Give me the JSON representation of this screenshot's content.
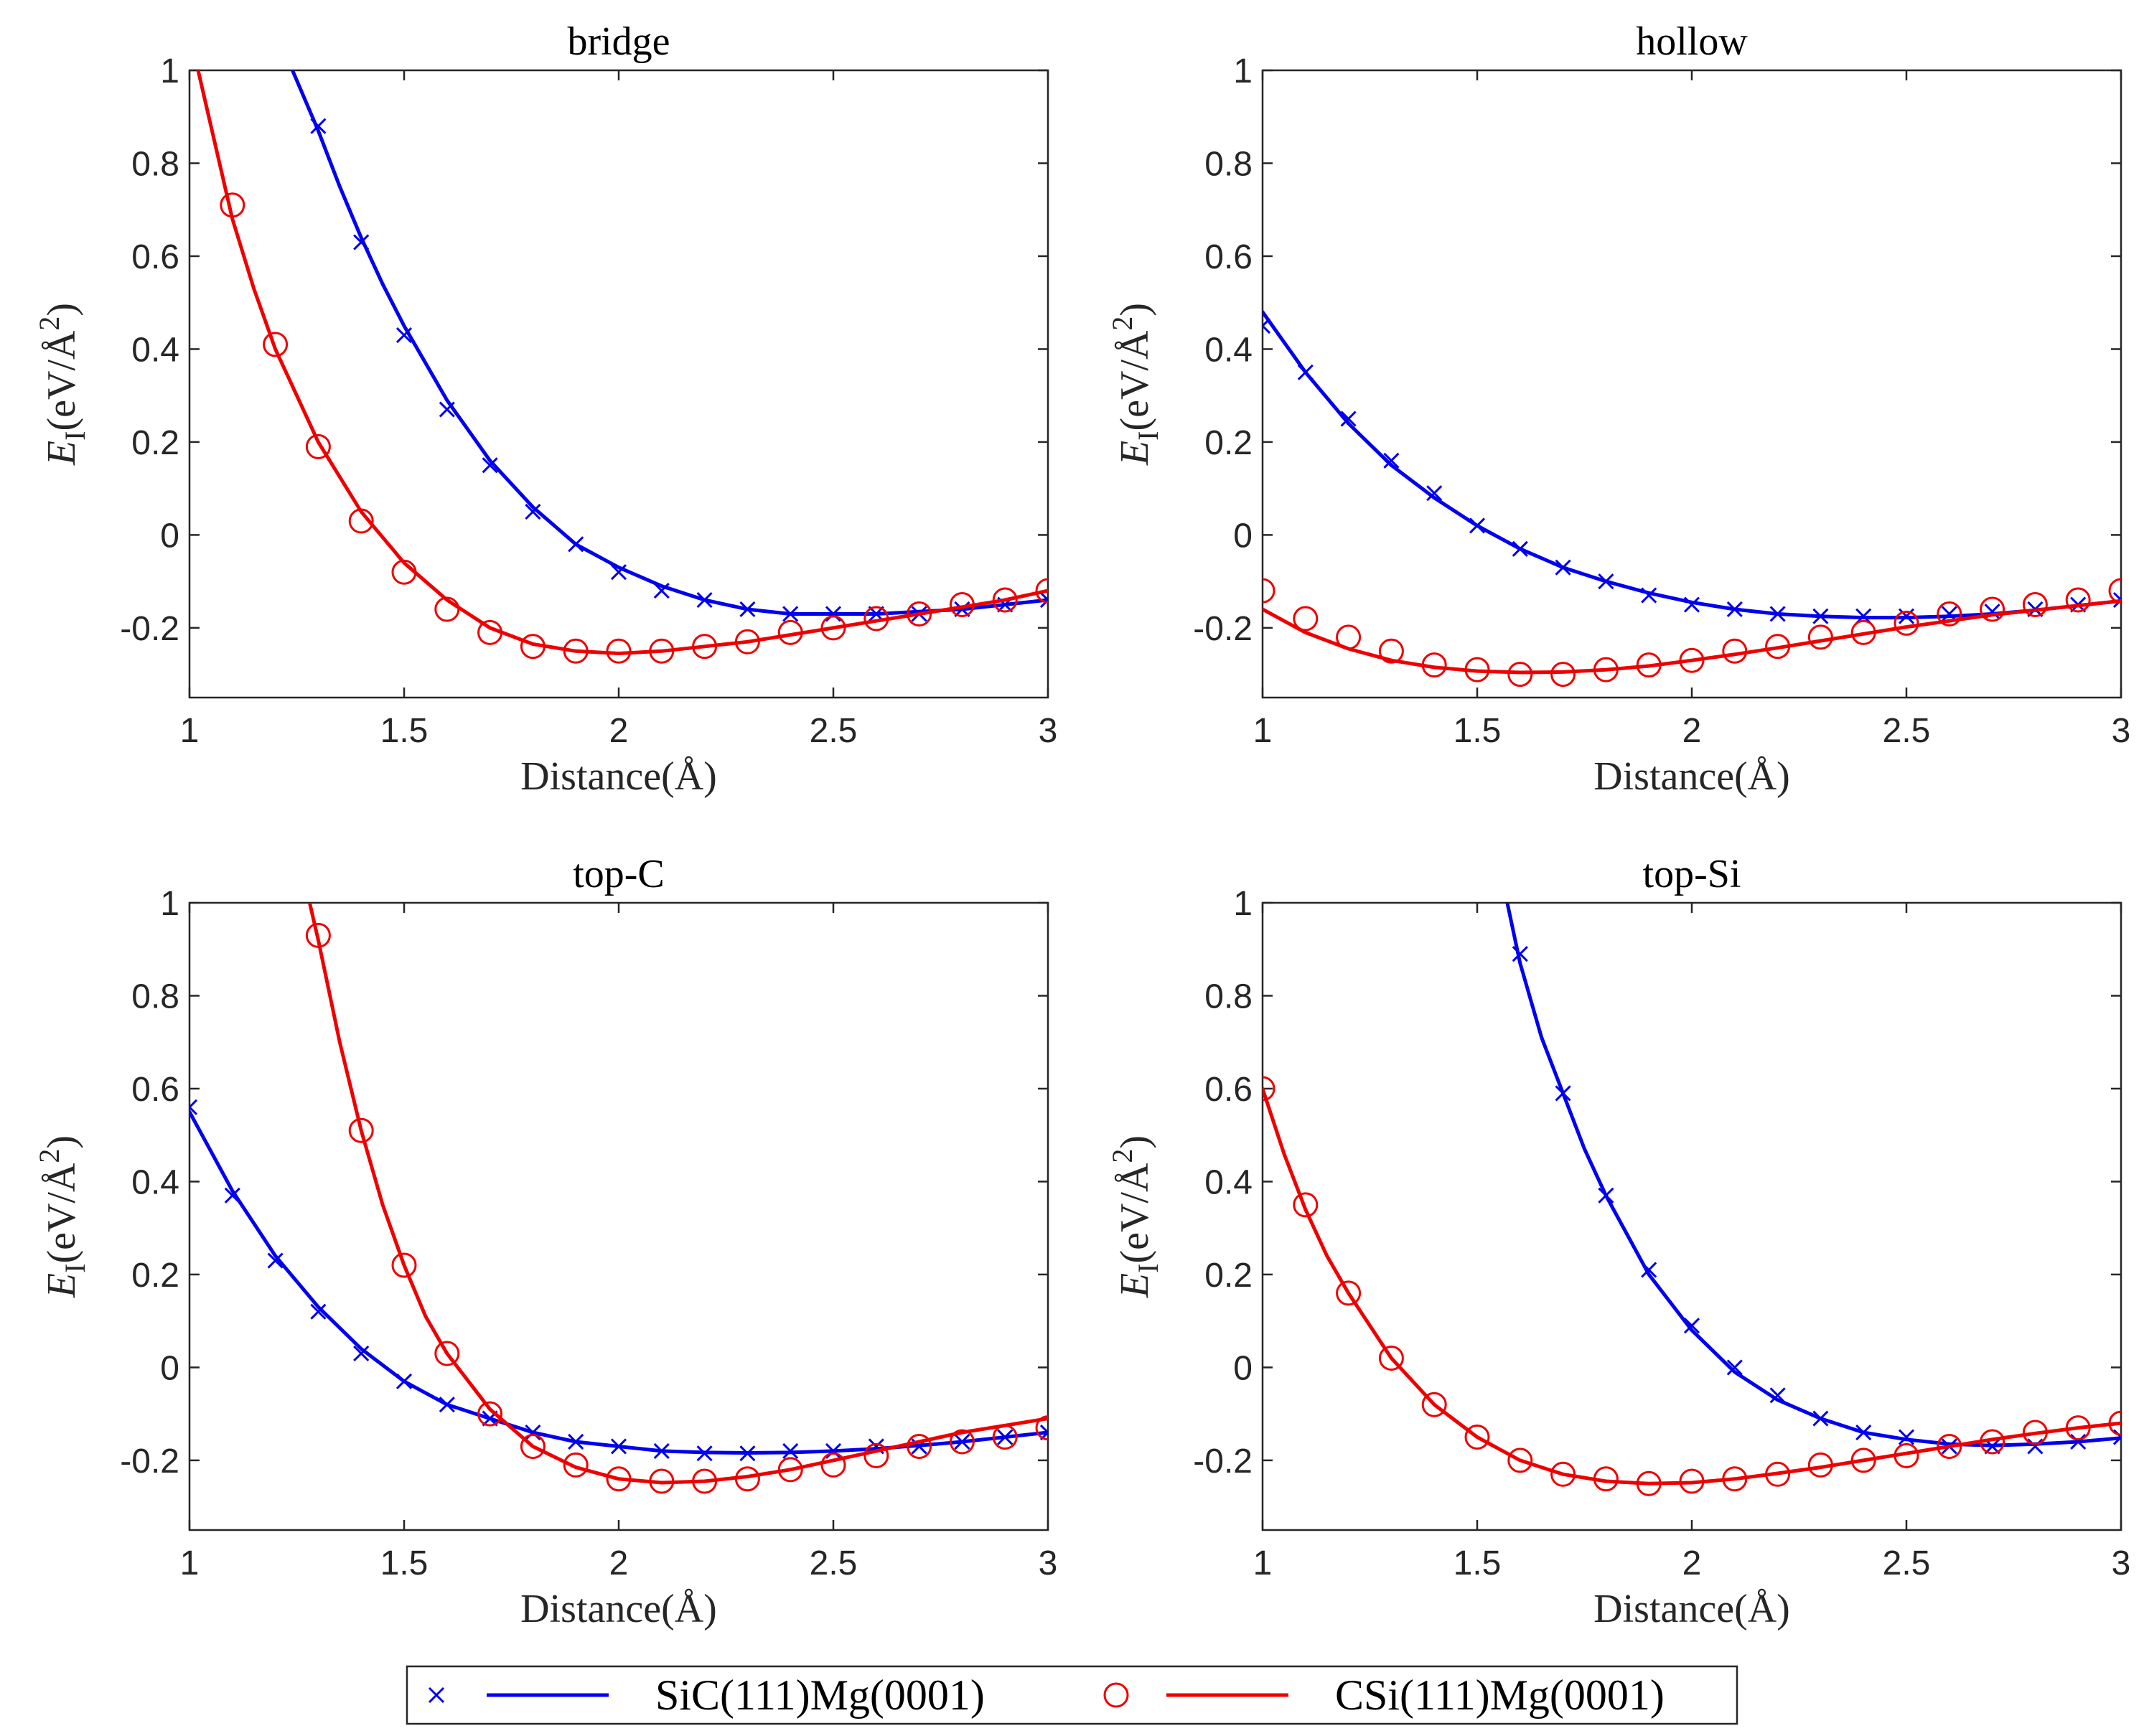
{
  "chart_data": [
    {
      "type": "line",
      "title": "bridge",
      "xlabel": "Distance(Å)",
      "ylabel": {
        "symbol": "E",
        "subscript": "I",
        "unit_open": "(eV/Å",
        "unit_power": "2",
        "unit_close": ")"
      },
      "xlim": [
        1,
        3
      ],
      "ylim": [
        -0.35,
        1
      ],
      "xticks": [
        1,
        1.5,
        2,
        2.5,
        3
      ],
      "yticks": [
        -0.2,
        0,
        0.2,
        0.4,
        0.6,
        0.8,
        1
      ],
      "series": [
        {
          "name": "SiC(111)Mg(0001)",
          "color": "#0000ee",
          "marker": "x",
          "points": {
            "x": [
              1.3,
              1.4,
              1.5,
              1.6,
              1.7,
              1.8,
              1.9,
              2.0,
              2.1,
              2.2,
              2.3,
              2.4,
              2.5,
              2.6,
              2.7,
              2.8,
              2.9,
              3.0
            ],
            "y": [
              0.88,
              0.63,
              0.43,
              0.27,
              0.15,
              0.05,
              -0.02,
              -0.08,
              -0.12,
              -0.14,
              -0.16,
              -0.17,
              -0.17,
              -0.17,
              -0.17,
              -0.16,
              -0.15,
              -0.14
            ]
          },
          "fit": {
            "x": [
              1.24,
              1.3,
              1.35,
              1.4,
              1.45,
              1.5,
              1.6,
              1.7,
              1.8,
              1.9,
              2.0,
              2.1,
              2.2,
              2.3,
              2.4,
              2.5,
              2.6,
              2.7,
              2.8,
              2.9,
              3.0
            ],
            "y": [
              1.0,
              0.87,
              0.75,
              0.64,
              0.54,
              0.45,
              0.29,
              0.16,
              0.06,
              -0.02,
              -0.07,
              -0.11,
              -0.14,
              -0.16,
              -0.17,
              -0.17,
              -0.17,
              -0.165,
              -0.16,
              -0.15,
              -0.14
            ]
          }
        },
        {
          "name": "CSi(111)Mg(0001)",
          "color": "#ee0000",
          "marker": "o",
          "points": {
            "x": [
              1.1,
              1.2,
              1.3,
              1.4,
              1.5,
              1.6,
              1.7,
              1.8,
              1.9,
              2.0,
              2.1,
              2.2,
              2.3,
              2.4,
              2.5,
              2.6,
              2.7,
              2.8,
              2.9,
              3.0
            ],
            "y": [
              0.71,
              0.41,
              0.19,
              0.03,
              -0.08,
              -0.16,
              -0.21,
              -0.24,
              -0.25,
              -0.25,
              -0.25,
              -0.24,
              -0.23,
              -0.21,
              -0.2,
              -0.18,
              -0.17,
              -0.15,
              -0.14,
              -0.12
            ]
          },
          "fit": {
            "x": [
              1.02,
              1.05,
              1.1,
              1.15,
              1.2,
              1.3,
              1.4,
              1.5,
              1.6,
              1.7,
              1.8,
              1.9,
              2.0,
              2.1,
              2.2,
              2.3,
              2.4,
              2.5,
              2.6,
              2.7,
              2.8,
              2.9,
              3.0
            ],
            "y": [
              1.0,
              0.88,
              0.68,
              0.53,
              0.4,
              0.2,
              0.05,
              -0.06,
              -0.14,
              -0.2,
              -0.235,
              -0.25,
              -0.255,
              -0.25,
              -0.24,
              -0.23,
              -0.215,
              -0.2,
              -0.185,
              -0.17,
              -0.155,
              -0.14,
              -0.12
            ]
          }
        }
      ]
    },
    {
      "type": "line",
      "title": "hollow",
      "xlabel": "Distance(Å)",
      "ylabel": {
        "symbol": "E",
        "subscript": "I",
        "unit_open": "(eV/Å",
        "unit_power": "2",
        "unit_close": ")"
      },
      "xlim": [
        1,
        3
      ],
      "ylim": [
        -0.35,
        1
      ],
      "xticks": [
        1,
        1.5,
        2,
        2.5,
        3
      ],
      "yticks": [
        -0.2,
        0,
        0.2,
        0.4,
        0.6,
        0.8,
        1
      ],
      "series": [
        {
          "name": "SiC(111)Mg(0001)",
          "color": "#0000ee",
          "marker": "x",
          "points": {
            "x": [
              1.0,
              1.1,
              1.2,
              1.3,
              1.4,
              1.5,
              1.6,
              1.7,
              1.8,
              1.9,
              2.0,
              2.1,
              2.2,
              2.3,
              2.4,
              2.5,
              2.6,
              2.7,
              2.8,
              2.9,
              3.0
            ],
            "y": [
              0.45,
              0.35,
              0.25,
              0.16,
              0.09,
              0.02,
              -0.03,
              -0.07,
              -0.1,
              -0.13,
              -0.15,
              -0.16,
              -0.17,
              -0.175,
              -0.175,
              -0.175,
              -0.17,
              -0.165,
              -0.16,
              -0.15,
              -0.14
            ]
          },
          "fit": {
            "x": [
              1.0,
              1.1,
              1.2,
              1.3,
              1.4,
              1.5,
              1.6,
              1.7,
              1.8,
              1.9,
              2.0,
              2.1,
              2.2,
              2.3,
              2.4,
              2.5,
              2.6,
              2.7,
              2.8,
              2.9,
              3.0
            ],
            "y": [
              0.48,
              0.35,
              0.24,
              0.15,
              0.08,
              0.02,
              -0.03,
              -0.07,
              -0.1,
              -0.125,
              -0.145,
              -0.16,
              -0.17,
              -0.175,
              -0.178,
              -0.178,
              -0.175,
              -0.17,
              -0.162,
              -0.152,
              -0.142
            ]
          }
        },
        {
          "name": "CSi(111)Mg(0001)",
          "color": "#ee0000",
          "marker": "o",
          "points": {
            "x": [
              1.0,
              1.1,
              1.2,
              1.3,
              1.4,
              1.5,
              1.6,
              1.7,
              1.8,
              1.9,
              2.0,
              2.1,
              2.2,
              2.3,
              2.4,
              2.5,
              2.6,
              2.7,
              2.8,
              2.9,
              3.0
            ],
            "y": [
              -0.12,
              -0.18,
              -0.22,
              -0.25,
              -0.28,
              -0.29,
              -0.3,
              -0.3,
              -0.29,
              -0.28,
              -0.27,
              -0.25,
              -0.24,
              -0.22,
              -0.21,
              -0.19,
              -0.17,
              -0.16,
              -0.15,
              -0.14,
              -0.12
            ]
          },
          "fit": {
            "x": [
              1.0,
              1.1,
              1.2,
              1.3,
              1.4,
              1.5,
              1.6,
              1.7,
              1.8,
              1.9,
              2.0,
              2.1,
              2.2,
              2.3,
              2.4,
              2.5,
              2.6,
              2.7,
              2.8,
              2.9,
              3.0
            ],
            "y": [
              -0.16,
              -0.21,
              -0.245,
              -0.27,
              -0.285,
              -0.293,
              -0.296,
              -0.295,
              -0.29,
              -0.282,
              -0.27,
              -0.257,
              -0.243,
              -0.228,
              -0.213,
              -0.198,
              -0.185,
              -0.172,
              -0.162,
              -0.152,
              -0.142
            ]
          }
        }
      ]
    },
    {
      "type": "line",
      "title": "top-C",
      "xlabel": "Distance(Å)",
      "ylabel": {
        "symbol": "E",
        "subscript": "I",
        "unit_open": "(eV/Å",
        "unit_power": "2",
        "unit_close": ")"
      },
      "xlim": [
        1,
        3
      ],
      "ylim": [
        -0.35,
        1
      ],
      "xticks": [
        1,
        1.5,
        2,
        2.5,
        3
      ],
      "yticks": [
        -0.2,
        0,
        0.2,
        0.4,
        0.6,
        0.8,
        1
      ],
      "series": [
        {
          "name": "SiC(111)Mg(0001)",
          "color": "#0000ee",
          "marker": "x",
          "points": {
            "x": [
              1.0,
              1.1,
              1.2,
              1.3,
              1.4,
              1.5,
              1.6,
              1.7,
              1.8,
              1.9,
              2.0,
              2.1,
              2.2,
              2.3,
              2.4,
              2.5,
              2.6,
              2.7,
              2.8,
              2.9,
              3.0
            ],
            "y": [
              0.56,
              0.37,
              0.23,
              0.12,
              0.03,
              -0.03,
              -0.08,
              -0.11,
              -0.14,
              -0.16,
              -0.17,
              -0.18,
              -0.185,
              -0.185,
              -0.18,
              -0.18,
              -0.17,
              -0.17,
              -0.16,
              -0.15,
              -0.14
            ]
          },
          "fit": {
            "x": [
              1.0,
              1.1,
              1.2,
              1.3,
              1.4,
              1.5,
              1.6,
              1.7,
              1.8,
              1.9,
              2.0,
              2.1,
              2.2,
              2.3,
              2.4,
              2.5,
              2.6,
              2.7,
              2.8,
              2.9,
              3.0
            ],
            "y": [
              0.55,
              0.38,
              0.24,
              0.13,
              0.04,
              -0.03,
              -0.08,
              -0.11,
              -0.14,
              -0.16,
              -0.17,
              -0.18,
              -0.183,
              -0.184,
              -0.183,
              -0.18,
              -0.175,
              -0.168,
              -0.16,
              -0.15,
              -0.14
            ]
          }
        },
        {
          "name": "CSi(111)Mg(0001)",
          "color": "#ee0000",
          "marker": "o",
          "points": {
            "x": [
              1.3,
              1.4,
              1.5,
              1.6,
              1.7,
              1.8,
              1.9,
              2.0,
              2.1,
              2.2,
              2.3,
              2.4,
              2.5,
              2.6,
              2.7,
              2.8,
              2.9,
              3.0
            ],
            "y": [
              0.93,
              0.51,
              0.22,
              0.03,
              -0.1,
              -0.17,
              -0.21,
              -0.24,
              -0.245,
              -0.245,
              -0.24,
              -0.22,
              -0.21,
              -0.19,
              -0.17,
              -0.16,
              -0.15,
              -0.13
            ]
          },
          "fit": {
            "x": [
              1.28,
              1.3,
              1.35,
              1.4,
              1.45,
              1.5,
              1.55,
              1.6,
              1.7,
              1.8,
              1.9,
              2.0,
              2.1,
              2.2,
              2.3,
              2.4,
              2.5,
              2.6,
              2.7,
              2.8,
              2.9,
              3.0
            ],
            "y": [
              1.0,
              0.92,
              0.7,
              0.51,
              0.35,
              0.22,
              0.11,
              0.03,
              -0.09,
              -0.17,
              -0.215,
              -0.24,
              -0.248,
              -0.245,
              -0.235,
              -0.22,
              -0.2,
              -0.18,
              -0.16,
              -0.14,
              -0.125,
              -0.11
            ]
          }
        }
      ]
    },
    {
      "type": "line",
      "title": "top-Si",
      "xlabel": "Distance(Å)",
      "ylabel": {
        "symbol": "E",
        "subscript": "I",
        "unit_open": "(eV/Å",
        "unit_power": "2",
        "unit_close": ")"
      },
      "xlim": [
        1,
        3
      ],
      "ylim": [
        -0.35,
        1
      ],
      "xticks": [
        1,
        1.5,
        2,
        2.5,
        3
      ],
      "yticks": [
        -0.2,
        0,
        0.2,
        0.4,
        0.6,
        0.8,
        1
      ],
      "series": [
        {
          "name": "SiC(111)Mg(0001)",
          "color": "#0000ee",
          "marker": "x",
          "points": {
            "x": [
              1.6,
              1.7,
              1.8,
              1.9,
              2.0,
              2.1,
              2.2,
              2.3,
              2.4,
              2.5,
              2.6,
              2.7,
              2.8,
              2.9,
              3.0
            ],
            "y": [
              0.89,
              0.59,
              0.37,
              0.21,
              0.09,
              0.0,
              -0.06,
              -0.11,
              -0.14,
              -0.15,
              -0.17,
              -0.17,
              -0.17,
              -0.16,
              -0.15
            ]
          },
          "fit": {
            "x": [
              1.57,
              1.6,
              1.65,
              1.7,
              1.75,
              1.8,
              1.9,
              2.0,
              2.1,
              2.2,
              2.3,
              2.4,
              2.5,
              2.6,
              2.7,
              2.8,
              2.9,
              3.0
            ],
            "y": [
              1.0,
              0.87,
              0.71,
              0.59,
              0.47,
              0.37,
              0.2,
              0.08,
              -0.01,
              -0.07,
              -0.11,
              -0.14,
              -0.155,
              -0.165,
              -0.168,
              -0.165,
              -0.16,
              -0.152
            ]
          }
        },
        {
          "name": "CSi(111)Mg(0001)",
          "color": "#ee0000",
          "marker": "o",
          "points": {
            "x": [
              1.0,
              1.1,
              1.2,
              1.3,
              1.4,
              1.5,
              1.6,
              1.7,
              1.8,
              1.9,
              2.0,
              2.1,
              2.2,
              2.3,
              2.4,
              2.5,
              2.6,
              2.7,
              2.8,
              2.9,
              3.0
            ],
            "y": [
              0.6,
              0.35,
              0.16,
              0.02,
              -0.08,
              -0.15,
              -0.2,
              -0.23,
              -0.24,
              -0.25,
              -0.245,
              -0.24,
              -0.23,
              -0.21,
              -0.2,
              -0.19,
              -0.17,
              -0.16,
              -0.14,
              -0.13,
              -0.12
            ]
          },
          "fit": {
            "x": [
              1.0,
              1.05,
              1.1,
              1.15,
              1.2,
              1.3,
              1.4,
              1.5,
              1.6,
              1.7,
              1.8,
              1.9,
              2.0,
              2.1,
              2.2,
              2.3,
              2.4,
              2.5,
              2.6,
              2.7,
              2.8,
              2.9,
              3.0
            ],
            "y": [
              0.6,
              0.46,
              0.34,
              0.24,
              0.16,
              0.02,
              -0.08,
              -0.15,
              -0.2,
              -0.23,
              -0.245,
              -0.25,
              -0.248,
              -0.24,
              -0.228,
              -0.215,
              -0.2,
              -0.185,
              -0.17,
              -0.155,
              -0.142,
              -0.13,
              -0.12
            ]
          }
        }
      ]
    }
  ],
  "legend": {
    "entries": [
      {
        "label": "SiC(111)Mg(0001)",
        "color": "#0000ee",
        "marker": "x"
      },
      {
        "label": "CSi(111)Mg(0001)",
        "color": "#ee0000",
        "marker": "o"
      }
    ]
  }
}
